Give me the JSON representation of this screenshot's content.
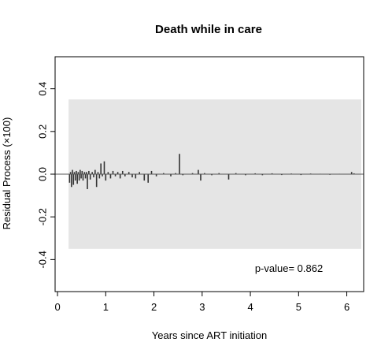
{
  "chart_data": {
    "type": "line",
    "title": "Death while in care",
    "xlabel": "Years since ART initiation",
    "ylabel": "Residual Process (×100)",
    "xlim": [
      -0.05,
      6.35
    ],
    "ylim": [
      -0.55,
      0.55
    ],
    "xticks": [
      "0",
      "1",
      "2",
      "3",
      "4",
      "5",
      "6"
    ],
    "xtick_values": [
      0,
      1,
      2,
      3,
      4,
      5,
      6
    ],
    "yticks": [
      "-0.4",
      "-0.2",
      "0.0",
      "0.2",
      "0.4"
    ],
    "ytick_values": [
      -0.4,
      -0.2,
      0.0,
      0.2,
      0.4
    ],
    "confidence_band": {
      "x": [
        0.23,
        6.3
      ],
      "y": [
        -0.35,
        0.35
      ],
      "color": "#e5e5e5"
    },
    "reference_line_y": 0,
    "annotation": "p-value= 0.862",
    "series": [
      {
        "line_color": "#333333",
        "spikes": [
          [
            0.25,
            -0.04
          ],
          [
            0.27,
            0.01
          ],
          [
            0.29,
            -0.06
          ],
          [
            0.31,
            0.02
          ],
          [
            0.33,
            -0.05
          ],
          [
            0.35,
            0.01
          ],
          [
            0.37,
            -0.03
          ],
          [
            0.39,
            0.015
          ],
          [
            0.41,
            -0.045
          ],
          [
            0.43,
            0.01
          ],
          [
            0.45,
            -0.03
          ],
          [
            0.47,
            0.02
          ],
          [
            0.49,
            -0.02
          ],
          [
            0.51,
            0.015
          ],
          [
            0.53,
            -0.03
          ],
          [
            0.56,
            0.01
          ],
          [
            0.58,
            -0.02
          ],
          [
            0.6,
            0.01
          ],
          [
            0.62,
            -0.07
          ],
          [
            0.65,
            0.015
          ],
          [
            0.68,
            -0.025
          ],
          [
            0.72,
            0.01
          ],
          [
            0.75,
            -0.015
          ],
          [
            0.78,
            0.02
          ],
          [
            0.81,
            -0.06
          ],
          [
            0.84,
            0.01
          ],
          [
            0.87,
            -0.02
          ],
          [
            0.9,
            0.05
          ],
          [
            0.93,
            -0.01
          ],
          [
            0.97,
            0.06
          ],
          [
            1.0,
            -0.03
          ],
          [
            1.05,
            0.01
          ],
          [
            1.1,
            -0.02
          ],
          [
            1.15,
            0.015
          ],
          [
            1.2,
            -0.01
          ],
          [
            1.25,
            0.01
          ],
          [
            1.3,
            -0.02
          ],
          [
            1.35,
            0.015
          ],
          [
            1.4,
            -0.01
          ],
          [
            1.48,
            0.01
          ],
          [
            1.55,
            -0.015
          ],
          [
            1.62,
            -0.02
          ],
          [
            1.7,
            0.01
          ],
          [
            1.8,
            -0.03
          ],
          [
            1.88,
            -0.04
          ],
          [
            1.95,
            0.015
          ],
          [
            2.05,
            -0.01
          ],
          [
            2.2,
            0.005
          ],
          [
            2.35,
            -0.01
          ],
          [
            2.45,
            0.005
          ],
          [
            2.53,
            0.095
          ],
          [
            2.6,
            -0.005
          ],
          [
            2.8,
            0.005
          ],
          [
            2.92,
            0.02
          ],
          [
            2.97,
            -0.03
          ],
          [
            3.05,
            0.005
          ],
          [
            3.2,
            -0.005
          ],
          [
            3.35,
            0.005
          ],
          [
            3.55,
            -0.025
          ],
          [
            3.7,
            0.005
          ],
          [
            3.9,
            -0.005
          ],
          [
            4.1,
            0.004
          ],
          [
            4.25,
            -0.005
          ],
          [
            4.45,
            0.004
          ],
          [
            4.65,
            -0.004
          ],
          [
            4.85,
            0.003
          ],
          [
            5.05,
            -0.004
          ],
          [
            5.25,
            0.003
          ],
          [
            5.45,
            0.002
          ],
          [
            5.65,
            -0.003
          ],
          [
            5.85,
            0.002
          ],
          [
            6.1,
            0.01
          ],
          [
            6.15,
            0.004
          ]
        ]
      }
    ]
  }
}
